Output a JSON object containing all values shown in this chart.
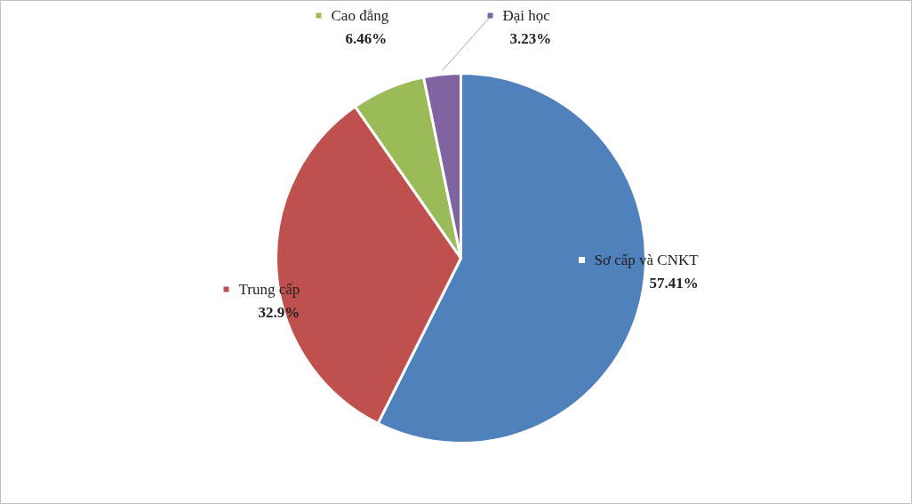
{
  "chart_data": {
    "type": "pie",
    "categories": [
      "Sơ cấp và CNKT",
      "Trung cấp",
      "Cao đẳng",
      "Đại học"
    ],
    "values": [
      57.41,
      32.9,
      6.46,
      3.23
    ],
    "value_labels": [
      "57.41%",
      "32.9%",
      "6.46%",
      "3.23%"
    ],
    "colors": [
      "#4f81bd",
      "#c0504d",
      "#9bbb59",
      "#8064a2"
    ],
    "legend": "top right"
  }
}
